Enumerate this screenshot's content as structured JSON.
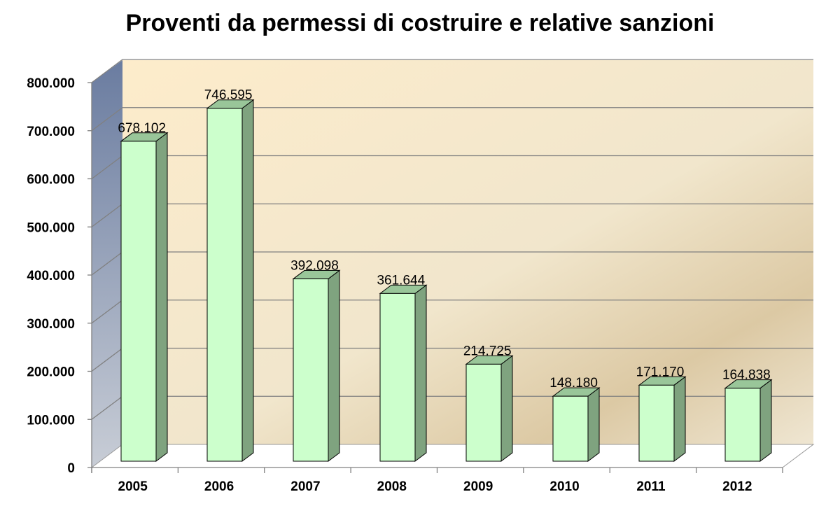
{
  "chart_data": {
    "type": "bar",
    "title": "Proventi da permessi di costruire e relative sanzioni",
    "categories": [
      "2005",
      "2006",
      "2007",
      "2008",
      "2009",
      "2010",
      "2011",
      "2012"
    ],
    "values": [
      678102,
      746595,
      392098,
      361644,
      214725,
      148180,
      171170,
      164838
    ],
    "data_labels": [
      "678.102",
      "746.595",
      "392.098",
      "361.644",
      "214.725",
      "148.180",
      "171.170",
      "164.838"
    ],
    "yticks": [
      "0",
      "100.000",
      "200.000",
      "300.000",
      "400.000",
      "500.000",
      "600.000",
      "700.000",
      "800.000"
    ],
    "ylim": [
      0,
      800000
    ],
    "grid": true,
    "legend": "none",
    "three_d": true,
    "colors": {
      "bar_front": "#ccffcc",
      "bar_side": "#7fa37f",
      "bar_top": "#99c699",
      "side_wall": "#6b7fa3",
      "back_wall": "#f3e9cf",
      "floor": "#ffffff"
    }
  }
}
